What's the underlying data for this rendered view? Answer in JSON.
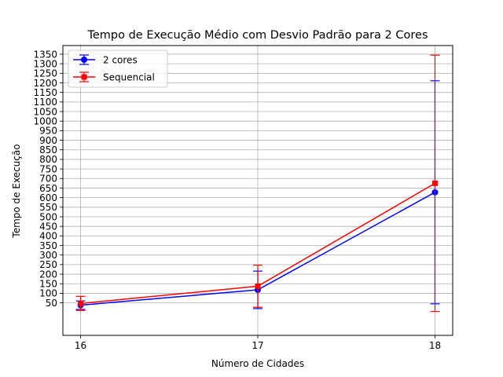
{
  "chart_data": {
    "type": "line",
    "title": "Tempo de Execução Médio com Desvio Padrão para 2 Cores",
    "xlabel": "Número de Cidades",
    "ylabel": "Tempo de Execução",
    "x": [
      16,
      17,
      18
    ],
    "x_ticks": [
      "16",
      "17",
      "18"
    ],
    "xlim": [
      15.9,
      18.1
    ],
    "ylim": [
      -120,
      1395
    ],
    "y_ticks": [
      50,
      100,
      150,
      200,
      250,
      300,
      350,
      400,
      450,
      500,
      550,
      600,
      650,
      700,
      750,
      800,
      850,
      900,
      950,
      1000,
      1050,
      1100,
      1150,
      1200,
      1250,
      1300,
      1350
    ],
    "grid": true,
    "legend_position": "top-left",
    "series": [
      {
        "name": "2 cores",
        "color": "#0000ff",
        "marker": "circle",
        "values": [
          38,
          118,
          628
        ],
        "error": [
          22,
          98,
          583
        ]
      },
      {
        "name": "Sequencial",
        "color": "#ff0000",
        "marker": "square",
        "values": [
          47,
          137,
          675
        ],
        "error": [
          37,
          110,
          670
        ]
      }
    ]
  }
}
